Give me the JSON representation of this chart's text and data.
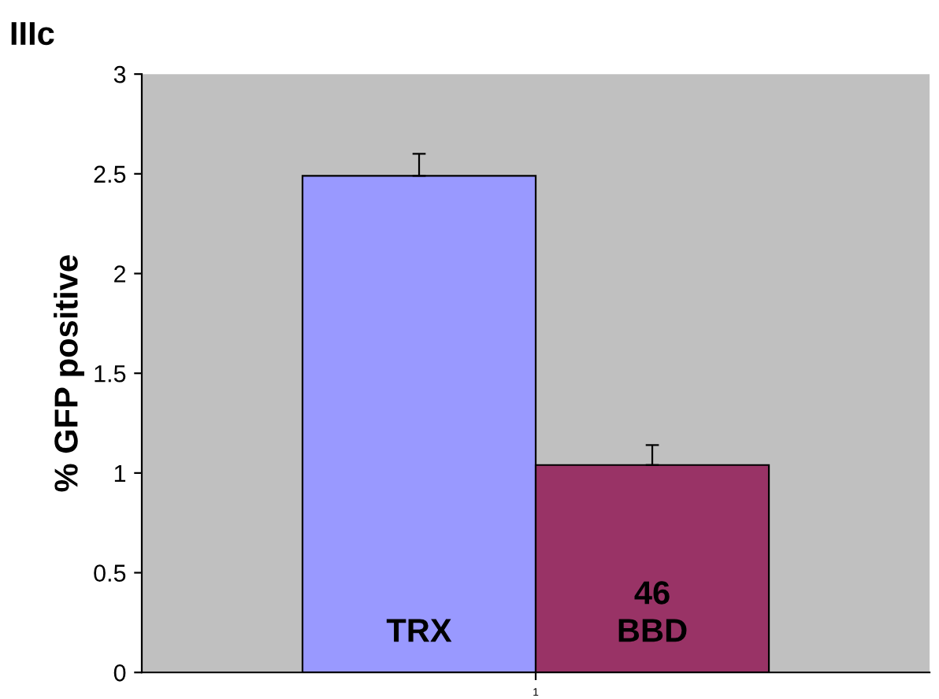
{
  "chart_data": {
    "type": "bar",
    "title": "IIIc",
    "ylabel": "% GFP positive",
    "categories": [
      "1"
    ],
    "series": [
      {
        "name": "TRX",
        "color": "#9999ff",
        "values": [
          2.49
        ],
        "errors": [
          [
            2.49,
            2.6
          ]
        ]
      },
      {
        "name": "46\nBBD",
        "color": "#993366",
        "values": [
          1.04
        ],
        "errors": [
          [
            1.04,
            1.14
          ]
        ]
      }
    ],
    "ylim": [
      0,
      3
    ],
    "yticks": [
      0,
      0.5,
      1,
      1.5,
      2,
      2.5,
      3
    ],
    "grid": false,
    "legend": false
  }
}
